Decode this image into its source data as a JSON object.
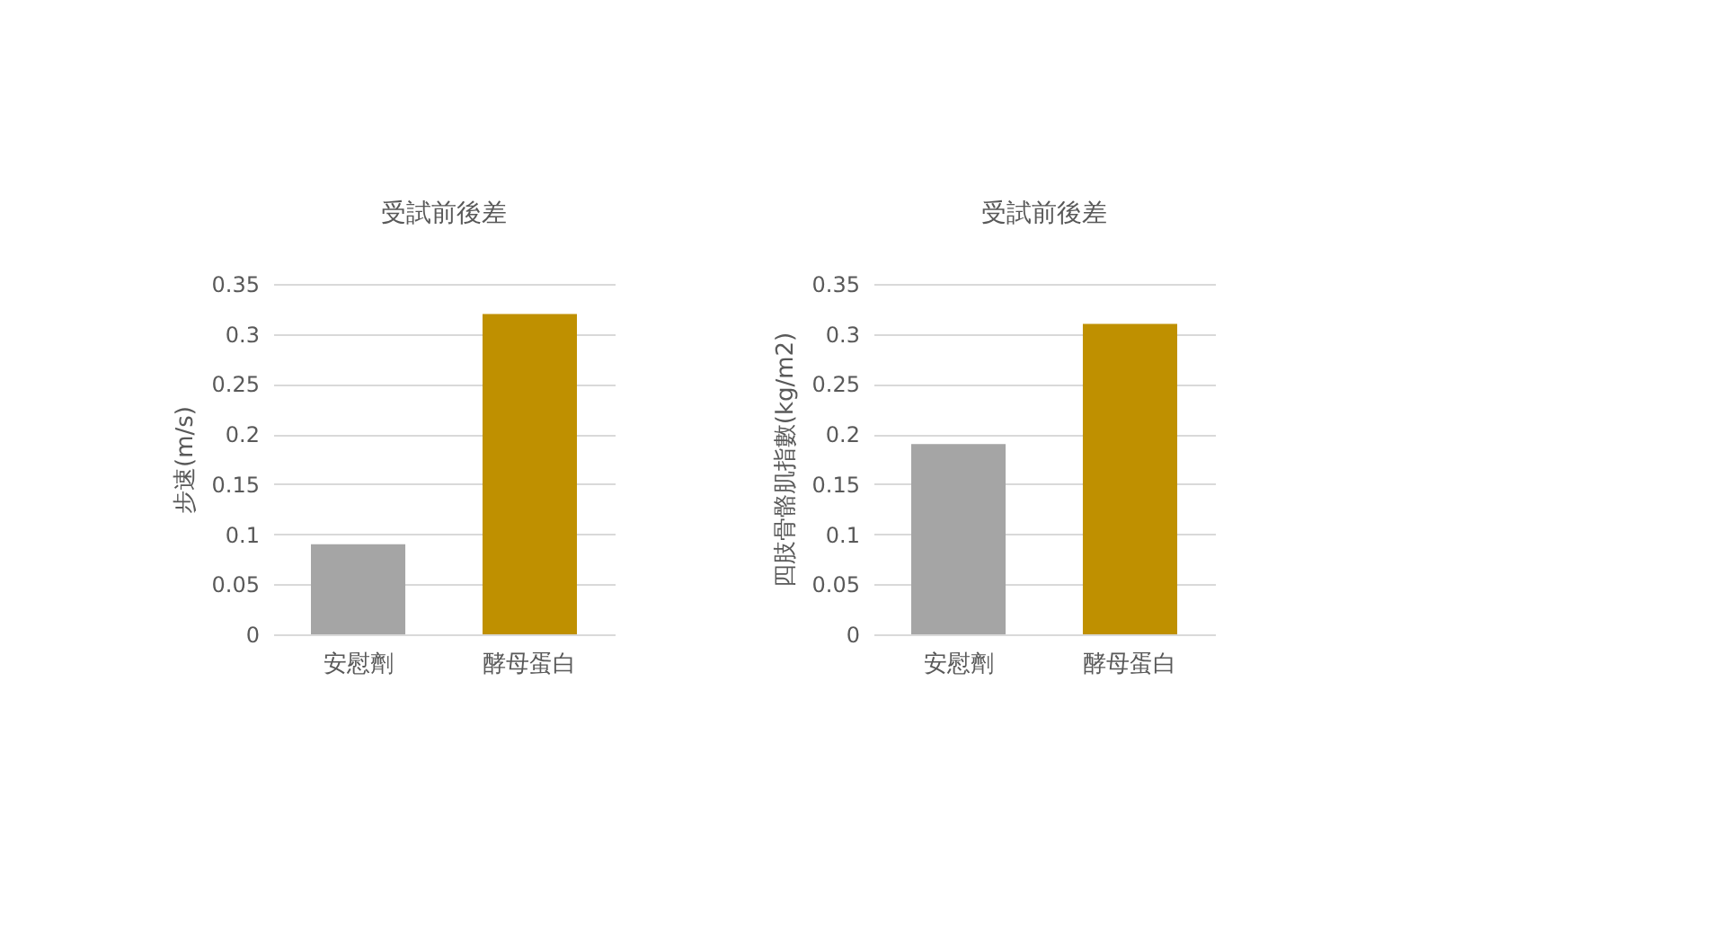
{
  "chart_data": [
    {
      "type": "bar",
      "title": "受試前後差",
      "ylabel": "步速(m/s)",
      "categories": [
        "安慰劑",
        "酵母蛋白"
      ],
      "values": [
        0.09,
        0.32
      ],
      "colors": [
        "#a5a5a5",
        "#bf9000"
      ],
      "ylim": [
        0,
        0.35
      ],
      "yticks": [
        0,
        0.05,
        0.1,
        0.15,
        0.2,
        0.25,
        0.3,
        0.35
      ],
      "grid": "y"
    },
    {
      "type": "bar",
      "title": "受試前後差",
      "ylabel": "四肢骨骼肌指數(kg/m2)",
      "categories": [
        "安慰劑",
        "酵母蛋白"
      ],
      "values": [
        0.19,
        0.31
      ],
      "colors": [
        "#a5a5a5",
        "#bf9000"
      ],
      "ylim": [
        0,
        0.35
      ],
      "yticks": [
        0,
        0.05,
        0.1,
        0.15,
        0.2,
        0.25,
        0.3,
        0.35
      ],
      "grid": "y"
    }
  ]
}
